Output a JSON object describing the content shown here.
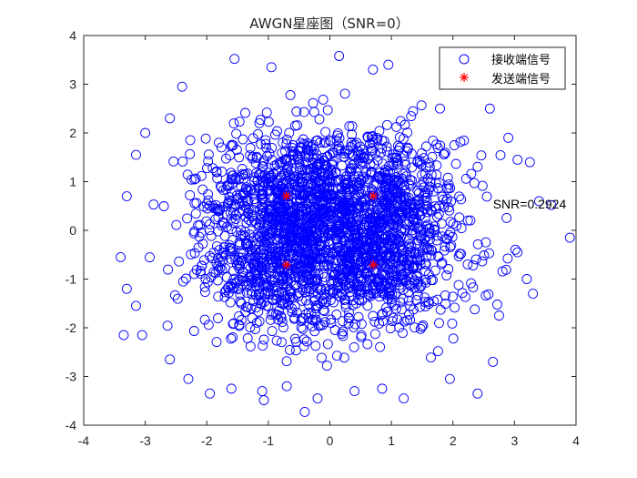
{
  "chart_data": {
    "type": "scatter",
    "title": "AWGN星座图（SNR=0）",
    "xlabel": "",
    "ylabel": "",
    "xlim": [
      -4,
      4
    ],
    "ylim": [
      -4,
      4
    ],
    "xticks": [
      "-4",
      "-3",
      "-2",
      "-1",
      "0",
      "1",
      "2",
      "3",
      "4"
    ],
    "yticks": [
      "-4",
      "-3",
      "-2",
      "-1",
      "0",
      "1",
      "2",
      "3",
      "4"
    ],
    "grid": false,
    "legend_position": "top-right",
    "series": [
      {
        "name": "接收端信号",
        "marker": "circle",
        "color": "#0000ff",
        "points": [
          [
            0.15,
            3.58
          ],
          [
            -1.55,
            3.52
          ],
          [
            0.95,
            3.4
          ],
          [
            -0.95,
            3.35
          ],
          [
            0.7,
            3.3
          ],
          [
            -2.4,
            2.95
          ],
          [
            2.0,
            3.0
          ],
          [
            -2.6,
            2.3
          ],
          [
            2.6,
            2.5
          ],
          [
            -3.0,
            2.0
          ],
          [
            2.9,
            1.9
          ],
          [
            3.05,
            1.45
          ],
          [
            -3.15,
            1.55
          ],
          [
            3.25,
            1.4
          ],
          [
            -3.3,
            0.7
          ],
          [
            3.4,
            0.6
          ],
          [
            3.6,
            0.52
          ],
          [
            3.9,
            -0.15
          ],
          [
            -3.4,
            -0.55
          ],
          [
            -3.3,
            -1.2
          ],
          [
            3.05,
            -0.45
          ],
          [
            3.2,
            -1.0
          ],
          [
            3.3,
            -1.3
          ],
          [
            -3.15,
            -1.55
          ],
          [
            -3.35,
            -2.15
          ],
          [
            -3.05,
            -2.15
          ],
          [
            2.75,
            -1.75
          ],
          [
            -2.6,
            -2.65
          ],
          [
            2.65,
            -2.7
          ],
          [
            -2.3,
            -3.05
          ],
          [
            2.4,
            -3.35
          ],
          [
            1.95,
            -3.05
          ],
          [
            -1.95,
            -3.35
          ],
          [
            -1.6,
            -3.25
          ],
          [
            1.2,
            -3.45
          ],
          [
            0.85,
            -3.25
          ],
          [
            -0.7,
            -3.2
          ],
          [
            -0.2,
            -3.45
          ],
          [
            0.4,
            -3.3
          ],
          [
            -1.1,
            -3.3
          ],
          [
            -0.75,
            0.7
          ],
          [
            0.7,
            0.7
          ],
          [
            -0.7,
            -0.7
          ],
          [
            0.7,
            -0.7
          ]
        ]
      },
      {
        "name": "发送端信号",
        "marker": "asterisk",
        "color": "#ff0000",
        "points": [
          [
            -0.707,
            0.707
          ],
          [
            0.707,
            0.707
          ],
          [
            -0.707,
            -0.707
          ],
          [
            0.707,
            -0.707
          ]
        ]
      }
    ],
    "annotation": {
      "text": "SNR=0.2924",
      "x": 2.65,
      "y": 0.45
    }
  }
}
